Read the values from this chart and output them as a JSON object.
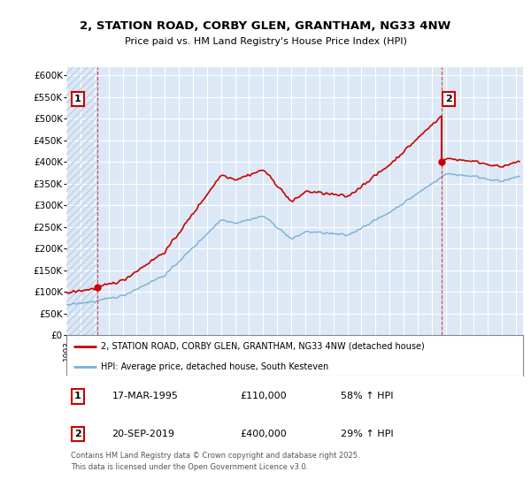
{
  "title_line1": "2, STATION ROAD, CORBY GLEN, GRANTHAM, NG33 4NW",
  "title_line2": "Price paid vs. HM Land Registry's House Price Index (HPI)",
  "bg_color": "#ffffff",
  "plot_bg_color": "#dce8f5",
  "grid_color": "#ffffff",
  "hatch_color": "#c0d0e8",
  "red_color": "#cc0000",
  "blue_color": "#7aaed6",
  "ylim": [
    0,
    620000
  ],
  "yticks": [
    0,
    50000,
    100000,
    150000,
    200000,
    250000,
    300000,
    350000,
    400000,
    450000,
    500000,
    550000,
    600000
  ],
  "ytick_labels": [
    "£0",
    "£50K",
    "£100K",
    "£150K",
    "£200K",
    "£250K",
    "£300K",
    "£350K",
    "£400K",
    "£450K",
    "£500K",
    "£550K",
    "£600K"
  ],
  "xmin": 1993.0,
  "xmax": 2025.5,
  "sale1_year": 1995.21,
  "sale1_price": 110000,
  "sale1_label": "1",
  "sale2_year": 2019.72,
  "sale2_price": 400000,
  "sale2_label": "2",
  "legend_line1": "2, STATION ROAD, CORBY GLEN, GRANTHAM, NG33 4NW (detached house)",
  "legend_line2": "HPI: Average price, detached house, South Kesteven",
  "table_row1": [
    "1",
    "17-MAR-1995",
    "£110,000",
    "58% ↑ HPI"
  ],
  "table_row2": [
    "2",
    "20-SEP-2019",
    "£400,000",
    "29% ↑ HPI"
  ],
  "footer": "Contains HM Land Registry data © Crown copyright and database right 2025.\nThis data is licensed under the Open Government Licence v3.0."
}
